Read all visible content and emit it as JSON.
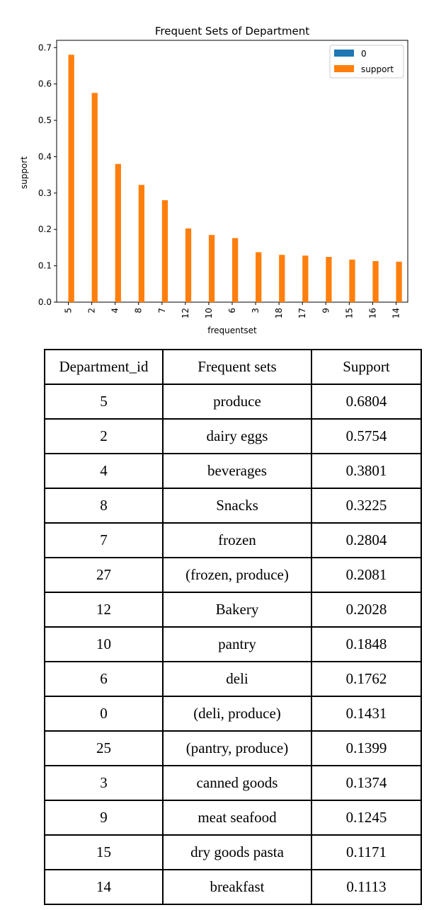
{
  "chart_data": {
    "type": "bar",
    "title": "Frequent Sets of Department",
    "xlabel": "frequentset",
    "ylabel": "support",
    "categories": [
      "5",
      "2",
      "4",
      "8",
      "7",
      "12",
      "10",
      "6",
      "3",
      "18",
      "17",
      "9",
      "15",
      "16",
      "14"
    ],
    "series": [
      {
        "name": "0",
        "color": "#1f77b4",
        "values": [
          0,
          0,
          0,
          0,
          0,
          0,
          0,
          0,
          0,
          0,
          0,
          0,
          0,
          0,
          0
        ]
      },
      {
        "name": "support",
        "color": "#ff7f0e",
        "values": [
          0.6804,
          0.5754,
          0.3801,
          0.3225,
          0.2804,
          0.2028,
          0.1848,
          0.1762,
          0.1374,
          0.13,
          0.128,
          0.1245,
          0.1171,
          0.113,
          0.1113
        ]
      }
    ],
    "ylim": [
      0,
      0.72
    ],
    "yticks": [
      "0.0",
      "0.1",
      "0.2",
      "0.3",
      "0.4",
      "0.5",
      "0.6",
      "0.7"
    ],
    "legend_position": "top-right",
    "grid": false
  },
  "table": {
    "headers": [
      "Department_id",
      "Frequent sets",
      "Support"
    ],
    "rows": [
      [
        "5",
        "produce",
        "0.6804"
      ],
      [
        "2",
        "dairy eggs",
        "0.5754"
      ],
      [
        "4",
        "beverages",
        "0.3801"
      ],
      [
        "8",
        "Snacks",
        "0.3225"
      ],
      [
        "7",
        "frozen",
        "0.2804"
      ],
      [
        "27",
        "(frozen, produce)",
        "0.2081"
      ],
      [
        "12",
        "Bakery",
        "0.2028"
      ],
      [
        "10",
        "pantry",
        "0.1848"
      ],
      [
        "6",
        "deli",
        "0.1762"
      ],
      [
        "0",
        "(deli, produce)",
        "0.1431"
      ],
      [
        "25",
        "(pantry, produce)",
        "0.1399"
      ],
      [
        "3",
        "canned goods",
        "0.1374"
      ],
      [
        "9",
        "meat seafood",
        "0.1245"
      ],
      [
        "15",
        "dry goods pasta",
        "0.1171"
      ],
      [
        "14",
        "breakfast",
        "0.1113"
      ]
    ]
  }
}
